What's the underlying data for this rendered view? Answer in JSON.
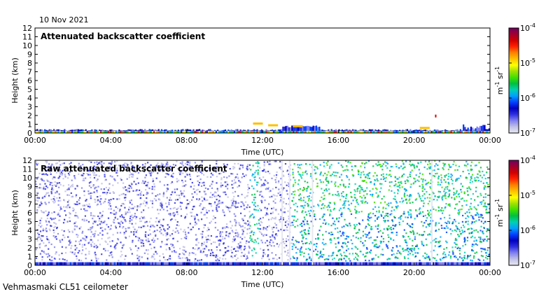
{
  "date_label": "10 Nov 2021",
  "footer_label": "Vehmasmaki CL51 ceilometer",
  "colorbar": {
    "unit_base": "m",
    "unit_exp1": "-1",
    "unit_mid": " sr",
    "unit_exp2": "-1",
    "ticks": [
      {
        "base": "10",
        "exp": "-4",
        "value": 0.0001
      },
      {
        "base": "10",
        "exp": "-5",
        "value": 1e-05
      },
      {
        "base": "10",
        "exp": "-6",
        "value": 1e-06
      },
      {
        "base": "10",
        "exp": "-7",
        "value": 1e-07
      }
    ],
    "colors": [
      "#e8e8f0",
      "#c0c0e8",
      "#8080f0",
      "#3030e0",
      "#0000c0",
      "#0040ff",
      "#00a0ff",
      "#00d0b0",
      "#00c040",
      "#40e000",
      "#a0e000",
      "#ffff00",
      "#ffc000",
      "#ff8000",
      "#ff2000",
      "#d00000",
      "#a00030",
      "#700060"
    ]
  },
  "chart_data": [
    {
      "type": "heatmap",
      "title": "Attenuated backscatter coefficient",
      "xlabel": "Time (UTC)",
      "ylabel": "Height (km)",
      "xlim": [
        0,
        24
      ],
      "ylim": [
        0,
        12
      ],
      "x_ticks": [
        "00:00",
        "04:00",
        "08:00",
        "12:00",
        "16:00",
        "20:00",
        "00:00"
      ],
      "y_ticks": [
        "0",
        "1",
        "2",
        "3",
        "4",
        "5",
        "6",
        "7",
        "8",
        "9",
        "10",
        "11",
        "12"
      ],
      "color_scale": "log",
      "clim": [
        1e-07,
        0.0001
      ]
    },
    {
      "type": "heatmap",
      "title": "Raw attenuated backscatter coefficient",
      "xlabel": "Time (UTC)",
      "ylabel": "Height (km)",
      "xlim": [
        0,
        24
      ],
      "ylim": [
        0,
        12
      ],
      "x_ticks": [
        "00:00",
        "04:00",
        "08:00",
        "12:00",
        "16:00",
        "20:00",
        "00:00"
      ],
      "y_ticks": [
        "0",
        "1",
        "2",
        "3",
        "4",
        "5",
        "6",
        "7",
        "8",
        "9",
        "10",
        "11",
        "12"
      ],
      "color_scale": "log",
      "clim": [
        1e-07,
        0.0001
      ]
    }
  ]
}
